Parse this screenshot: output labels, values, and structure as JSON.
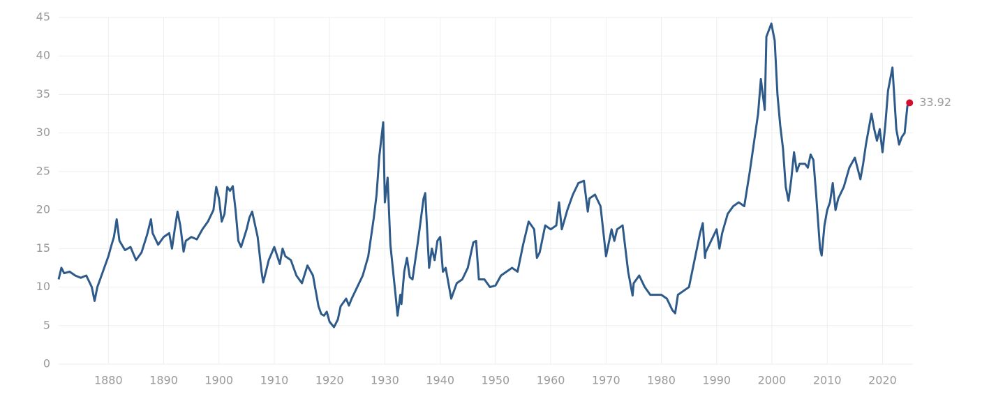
{
  "chart_data": {
    "type": "line",
    "x": [
      1871,
      1871.5,
      1872,
      1873,
      1874,
      1875,
      1876,
      1877,
      1877.5,
      1878,
      1879,
      1880,
      1880.5,
      1881,
      1881.5,
      1882,
      1883,
      1884,
      1885,
      1886,
      1887,
      1887.7,
      1888,
      1889,
      1890,
      1891,
      1891.5,
      1892,
      1892.5,
      1893,
      1893.6,
      1894,
      1895,
      1896,
      1897,
      1898,
      1899,
      1899.5,
      1900,
      1900.5,
      1901,
      1901.5,
      1902,
      1902.5,
      1903,
      1903.5,
      1904,
      1905,
      1905.5,
      1906,
      1907,
      1907.7,
      1908,
      1909,
      1910,
      1911,
      1911.5,
      1912,
      1913,
      1914,
      1915,
      1916,
      1917,
      1918,
      1918.5,
      1919,
      1919.5,
      1920,
      1920.8,
      1921.5,
      1922,
      1923,
      1923.5,
      1924,
      1925,
      1926,
      1927,
      1928,
      1928.5,
      1929,
      1929.7,
      1930,
      1930.5,
      1931,
      1932,
      1932.3,
      1932.8,
      1933,
      1933.5,
      1934,
      1934.5,
      1935,
      1936,
      1937,
      1937.3,
      1938,
      1938.5,
      1939,
      1939.5,
      1940,
      1940.5,
      1941,
      1942,
      1943,
      1944,
      1945,
      1946,
      1946.5,
      1947,
      1948,
      1949,
      1950,
      1951,
      1952,
      1953,
      1954,
      1955,
      1956,
      1957,
      1957.5,
      1958,
      1959,
      1960,
      1961,
      1961.5,
      1962,
      1963,
      1964,
      1965,
      1966,
      1966.7,
      1967,
      1968,
      1969,
      1970,
      1971,
      1971.5,
      1972,
      1973,
      1974,
      1974.8,
      1975,
      1976,
      1977,
      1978,
      1979,
      1980,
      1981,
      1982,
      1982.5,
      1983,
      1984,
      1985,
      1986,
      1987,
      1987.5,
      1987.9,
      1988,
      1989,
      1990,
      1990.5,
      1991,
      1992,
      1993,
      1994,
      1995,
      1996,
      1997,
      1997.5,
      1998,
      1998.7,
      1999,
      1999.9,
      2000.5,
      2001,
      2001.5,
      2002,
      2002.5,
      2003,
      2003.5,
      2004,
      2004.5,
      2005,
      2006,
      2006.5,
      2007,
      2007.5,
      2008,
      2008.7,
      2009,
      2009.5,
      2010,
      2010.5,
      2011,
      2011.5,
      2012,
      2013,
      2014,
      2015,
      2016,
      2016.5,
      2017,
      2018,
      2018.5,
      2019,
      2019.5,
      2020,
      2020.5,
      2021,
      2021.8,
      2022.5,
      2023,
      2023.5,
      2024,
      2024.5,
      2024.9
    ],
    "series": [
      {
        "color": "#2e5a8a",
        "values": [
          11,
          12.5,
          11.8,
          12,
          11.5,
          11.2,
          11.5,
          10,
          8.2,
          10,
          12,
          14,
          15.3,
          16.5,
          18.8,
          16,
          14.8,
          15.2,
          13.5,
          14.5,
          16.8,
          18.8,
          17,
          15.5,
          16.5,
          17,
          15,
          17.5,
          19.8,
          18,
          14.6,
          16,
          16.5,
          16.2,
          17.5,
          18.5,
          20,
          23,
          21.5,
          18.5,
          19.5,
          23,
          22.5,
          23.1,
          20,
          16,
          15.2,
          17.5,
          19,
          19.8,
          16.5,
          12,
          10.6,
          13.5,
          15.2,
          13,
          15,
          14,
          13.5,
          11.5,
          10.5,
          12.8,
          11.5,
          7.5,
          6.5,
          6.3,
          6.8,
          5.5,
          4.8,
          5.8,
          7.5,
          8.5,
          7.6,
          8.5,
          10,
          11.5,
          14,
          19,
          22,
          27,
          31.4,
          21,
          24.2,
          15.5,
          8.5,
          6.3,
          9,
          7.8,
          12,
          13.8,
          11.3,
          11,
          16,
          21.5,
          22.2,
          12.5,
          15,
          13.5,
          16,
          16.5,
          12,
          12.5,
          8.5,
          10.5,
          11,
          12.5,
          15.8,
          16,
          11,
          11,
          10,
          10.2,
          11.5,
          12,
          12.5,
          12,
          15.5,
          18.5,
          17.5,
          13.8,
          14.5,
          18,
          17.5,
          18,
          21,
          17.5,
          20,
          22,
          23.5,
          23.8,
          19.8,
          21.5,
          22,
          20.5,
          14,
          17.5,
          16,
          17.5,
          18,
          12,
          8.9,
          10.5,
          11.5,
          10,
          9,
          9,
          9,
          8.5,
          7,
          6.6,
          9,
          9.5,
          10,
          13.5,
          17,
          18.3,
          13.8,
          14.5,
          16,
          17.5,
          15,
          17,
          19.5,
          20.5,
          21,
          20.5,
          25,
          30,
          32.5,
          37,
          33,
          42.5,
          44.2,
          42,
          35,
          31,
          28,
          23,
          21.2,
          24,
          27.5,
          25,
          26,
          26,
          25.5,
          27.2,
          26.5,
          22,
          15,
          14.1,
          18,
          20,
          21,
          23.5,
          20,
          21.5,
          23,
          25.5,
          26.8,
          24,
          26,
          28.5,
          32.5,
          30.5,
          29,
          30.5,
          27.5,
          31,
          35.5,
          38.5,
          30.5,
          28.5,
          29.5,
          30,
          33.5,
          33.92
        ]
      }
    ],
    "marker_color": "#d0102e",
    "xlim": [
      1871,
      2025.5
    ],
    "xticks": [
      1880,
      1890,
      1900,
      1910,
      1920,
      1930,
      1940,
      1950,
      1960,
      1970,
      1980,
      1990,
      2000,
      2010,
      2020
    ],
    "ylim": [
      0,
      45
    ],
    "yticks": [
      0,
      5,
      10,
      15,
      20,
      25,
      30,
      35,
      40,
      45
    ],
    "grid": true
  }
}
